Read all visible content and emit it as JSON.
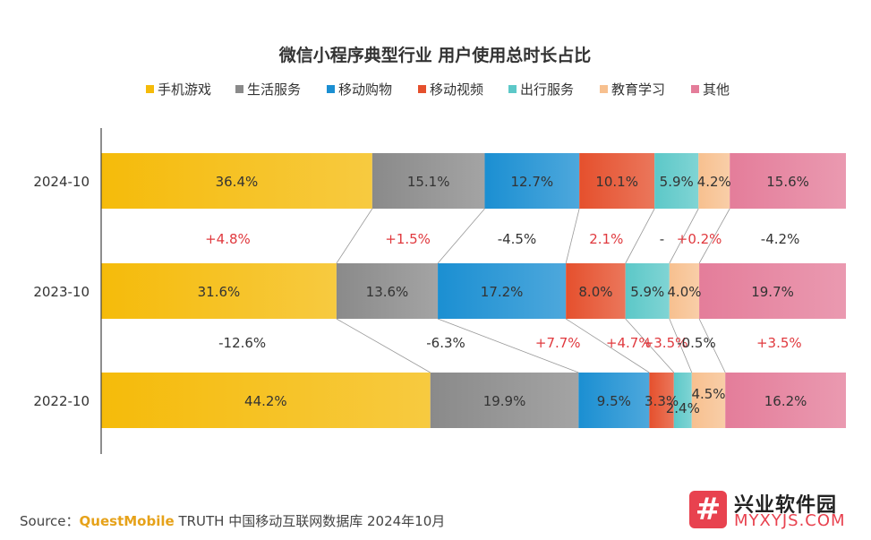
{
  "chart_data": {
    "type": "bar",
    "orientation": "horizontal",
    "stacked": true,
    "normalized": true,
    "title": "微信小程序典型行业 用户使用总时长占比",
    "legend_position": "top",
    "categories": [
      "2024-10",
      "2023-10",
      "2022-10"
    ],
    "series": [
      {
        "name": "手机游戏",
        "color": "#f5bb0a",
        "values": [
          36.4,
          31.6,
          44.2
        ],
        "labels": [
          "36.4%",
          "31.6%",
          "44.2%"
        ]
      },
      {
        "name": "生活服务",
        "color": "#8a8a8a",
        "values": [
          15.1,
          13.6,
          19.9
        ],
        "labels": [
          "15.1%",
          "13.6%",
          "19.9%"
        ]
      },
      {
        "name": "移动购物",
        "color": "#1b8fd2",
        "values": [
          12.7,
          17.2,
          9.5
        ],
        "labels": [
          "12.7%",
          "17.2%",
          "9.5%"
        ]
      },
      {
        "name": "移动视频",
        "color": "#e5502d",
        "values": [
          10.1,
          8.0,
          3.3
        ],
        "labels": [
          "10.1%",
          "8.0%",
          "3.3%"
        ]
      },
      {
        "name": "出行服务",
        "color": "#5cc8c8",
        "values": [
          5.9,
          5.9,
          2.4
        ],
        "labels": [
          "5.9%",
          "5.9%",
          "2.4%"
        ]
      },
      {
        "name": "教育学习",
        "color": "#f7c08f",
        "values": [
          4.2,
          4.0,
          4.5
        ],
        "labels": [
          "4.2%",
          "4.0%",
          "4.5%"
        ]
      },
      {
        "name": "其他",
        "color": "#e47d9a",
        "values": [
          15.6,
          19.7,
          16.2
        ],
        "labels": [
          "15.6%",
          "19.7%",
          "16.2%"
        ]
      }
    ],
    "changes": [
      {
        "between": [
          "2024-10",
          "2023-10"
        ],
        "labels": [
          "+4.8%",
          "+1.5%",
          "-4.5%",
          "2.1%",
          "-",
          "+0.2%",
          "-4.2%"
        ],
        "colors": [
          "#e0393e",
          "#e0393e",
          "#333333",
          "#e0393e",
          "#333333",
          "#e0393e",
          "#333333"
        ]
      },
      {
        "between": [
          "2023-10",
          "2022-10"
        ],
        "labels": [
          "-12.6%",
          "-6.3%",
          "+7.7%",
          "+4.7%",
          "+3.5%",
          "-0.5%",
          "+3.5%"
        ],
        "colors": [
          "#333333",
          "#333333",
          "#e0393e",
          "#e0393e",
          "#e0393e",
          "#333333",
          "#e0393e"
        ]
      }
    ]
  },
  "source": {
    "prefix": "Source：",
    "brand": "QuestMobile",
    "text": " TRUTH 中国移动互联网数据库 2024年10月"
  },
  "watermark": {
    "mark": "#",
    "name": "兴业软件园",
    "url": "MYXYJS.COM"
  }
}
